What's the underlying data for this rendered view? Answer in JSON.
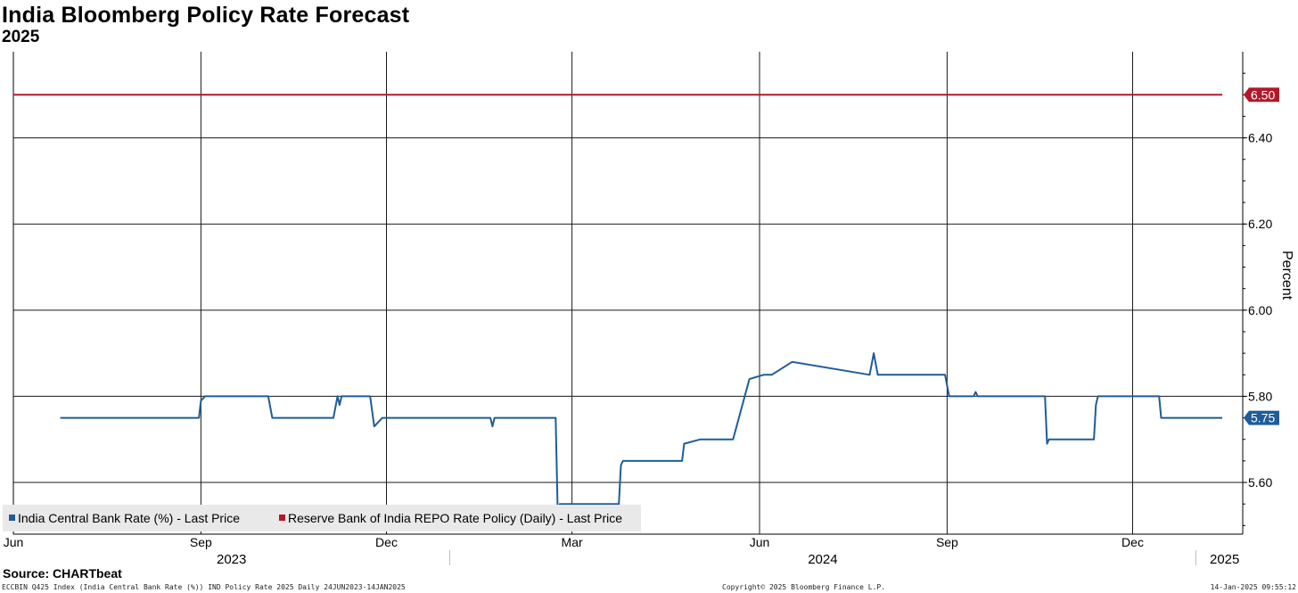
{
  "title": "India Bloomberg Policy Rate Forecast",
  "subtitle": "2025",
  "source": "Source: CHARTbeat",
  "footer": {
    "left": "ECCBIN Q425 Index (India Central Bank Rate (%)) IND Policy Rate 2025  Daily 24JUN2023-14JAN2025",
    "center": "Copyright© 2025 Bloomberg Finance L.P.",
    "right": "14-Jan-2025 09:55:12"
  },
  "chart_data": {
    "type": "line",
    "title": "India Bloomberg Policy Rate Forecast",
    "subtitle": "2025",
    "ylabel": "Percent",
    "xlabel": "",
    "xlim": [
      "2023-06-01",
      "2025-01-24"
    ],
    "ylim": [
      5.48,
      6.6
    ],
    "y_ticks": [
      5.6,
      5.8,
      6.0,
      6.2,
      6.4
    ],
    "y_tick_labels": [
      "5.60",
      "5.80",
      "6.00",
      "6.20",
      "6.40"
    ],
    "x_month_ticks": [
      {
        "date": "2023-06-01",
        "label": "Jun"
      },
      {
        "date": "2023-09-01",
        "label": "Sep"
      },
      {
        "date": "2023-12-01",
        "label": "Dec"
      },
      {
        "date": "2024-03-01",
        "label": "Mar"
      },
      {
        "date": "2024-06-01",
        "label": "Jun"
      },
      {
        "date": "2024-09-01",
        "label": "Sep"
      },
      {
        "date": "2024-12-01",
        "label": "Dec"
      }
    ],
    "x_year_labels": [
      {
        "label": "2023",
        "from": "2023-06-01",
        "to": "2024-01-01"
      },
      {
        "label": "2024",
        "from": "2024-01-01",
        "to": "2025-01-01"
      },
      {
        "label": "2025",
        "from": "2025-01-01",
        "to": "2025-01-24"
      }
    ],
    "grid": true,
    "legend_position": "bottom-left",
    "series": [
      {
        "name": "India Central Bank Rate (%) - Last Price",
        "color": "#1f5c99",
        "last_value_label": "5.75",
        "points": [
          [
            "2023-06-24",
            5.75
          ],
          [
            "2023-08-31",
            5.75
          ],
          [
            "2023-09-01",
            5.79
          ],
          [
            "2023-09-03",
            5.8
          ],
          [
            "2023-10-04",
            5.8
          ],
          [
            "2023-10-06",
            5.75
          ],
          [
            "2023-11-05",
            5.75
          ],
          [
            "2023-11-07",
            5.8
          ],
          [
            "2023-11-08",
            5.78
          ],
          [
            "2023-11-09",
            5.8
          ],
          [
            "2023-11-23",
            5.8
          ],
          [
            "2023-11-25",
            5.73
          ],
          [
            "2023-11-29",
            5.75
          ],
          [
            "2024-01-21",
            5.75
          ],
          [
            "2024-01-22",
            5.73
          ],
          [
            "2024-01-23",
            5.75
          ],
          [
            "2024-02-22",
            5.75
          ],
          [
            "2024-02-23",
            5.53
          ],
          [
            "2024-02-24",
            5.55
          ],
          [
            "2024-03-24",
            5.55
          ],
          [
            "2024-03-25",
            5.64
          ],
          [
            "2024-03-26",
            5.65
          ],
          [
            "2024-04-24",
            5.65
          ],
          [
            "2024-04-25",
            5.69
          ],
          [
            "2024-05-03",
            5.7
          ],
          [
            "2024-05-19",
            5.7
          ],
          [
            "2024-05-27",
            5.84
          ],
          [
            "2024-06-03",
            5.85
          ],
          [
            "2024-06-07",
            5.85
          ],
          [
            "2024-06-17",
            5.88
          ],
          [
            "2024-07-25",
            5.85
          ],
          [
            "2024-07-27",
            5.9
          ],
          [
            "2024-07-29",
            5.85
          ],
          [
            "2024-08-31",
            5.85
          ],
          [
            "2024-09-02",
            5.8
          ],
          [
            "2024-09-14",
            5.8
          ],
          [
            "2024-09-15",
            5.81
          ],
          [
            "2024-09-16",
            5.8
          ],
          [
            "2024-10-19",
            5.8
          ],
          [
            "2024-10-20",
            5.69
          ],
          [
            "2024-10-21",
            5.7
          ],
          [
            "2024-11-12",
            5.7
          ],
          [
            "2024-11-13",
            5.78
          ],
          [
            "2024-11-14",
            5.8
          ],
          [
            "2024-12-14",
            5.8
          ],
          [
            "2024-12-15",
            5.75
          ],
          [
            "2025-01-14",
            5.75
          ]
        ]
      },
      {
        "name": "Reserve Bank of India REPO Rate Policy (Daily) - Last Price",
        "color": "#b3182a",
        "last_value_label": "6.50",
        "points": [
          [
            "2023-06-01",
            6.5
          ],
          [
            "2025-01-14",
            6.5
          ]
        ]
      }
    ]
  }
}
